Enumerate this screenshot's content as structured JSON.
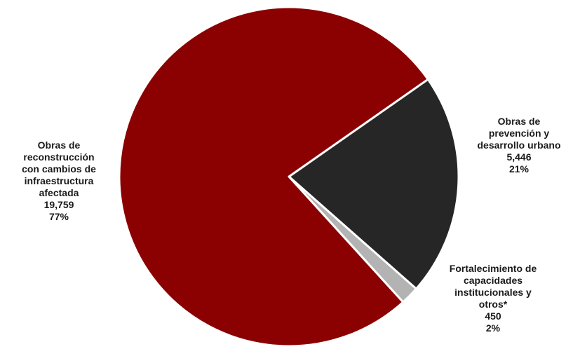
{
  "chart_data": {
    "type": "pie",
    "title": "",
    "slices": [
      {
        "label_lines": [
          "Obras de",
          "prevención y",
          "desarrollo urbano"
        ],
        "value": 5446,
        "value_label": "5,446",
        "percent_label": "21%",
        "color": "#262626"
      },
      {
        "label_lines": [
          "Fortalecimiento de",
          "capacidades",
          "institucionales y",
          "otros*"
        ],
        "value": 450,
        "value_label": "450",
        "percent_label": "2%",
        "color": "#b3b3b3"
      },
      {
        "label_lines": [
          "Obras de",
          "reconstrucción",
          "con cambios de",
          "infraestructura",
          "afectada"
        ],
        "value": 19759,
        "value_label": "19,759",
        "percent_label": "77%",
        "color": "#8b0000"
      }
    ],
    "legend": "none",
    "slice_border_color": "#ffffff"
  }
}
